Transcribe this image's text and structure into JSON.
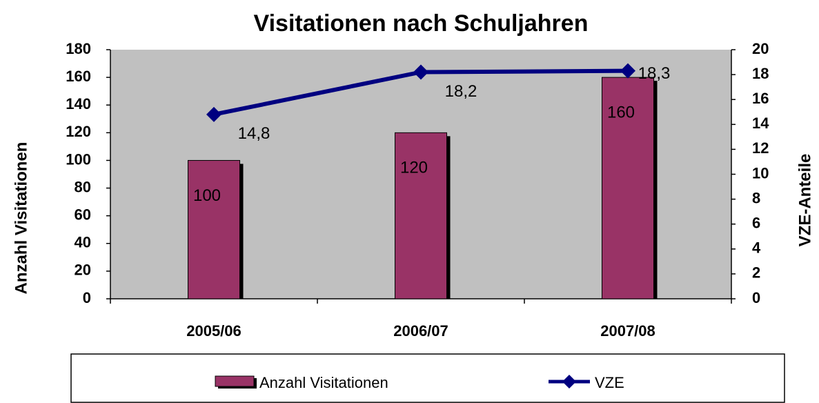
{
  "chart_data": {
    "type": "bar",
    "title": "Visitationen nach Schuljahren",
    "y_label": "Anzahl Visitationen",
    "y2_label": "VZE-Anteile",
    "categories": [
      "2005/06",
      "2006/07",
      "2007/08"
    ],
    "series": [
      {
        "name": "Anzahl Visitationen",
        "type": "bar",
        "color": "#993366",
        "values": [
          100,
          120,
          160
        ]
      },
      {
        "name": "VZE",
        "type": "line",
        "axis": "y2",
        "color": "#000080",
        "values": [
          14.8,
          18.2,
          18.3
        ],
        "value_labels": [
          "14,8",
          "18,2",
          "18,3"
        ]
      }
    ],
    "ylim": [
      0,
      180
    ],
    "yticks": [
      0,
      20,
      40,
      60,
      80,
      100,
      120,
      140,
      160,
      180
    ],
    "y2lim": [
      0,
      20
    ],
    "y2ticks": [
      0,
      2,
      4,
      6,
      8,
      10,
      12,
      14,
      16,
      18,
      20
    ],
    "legend": "bottom",
    "plot_background": "#c0c0c0"
  }
}
